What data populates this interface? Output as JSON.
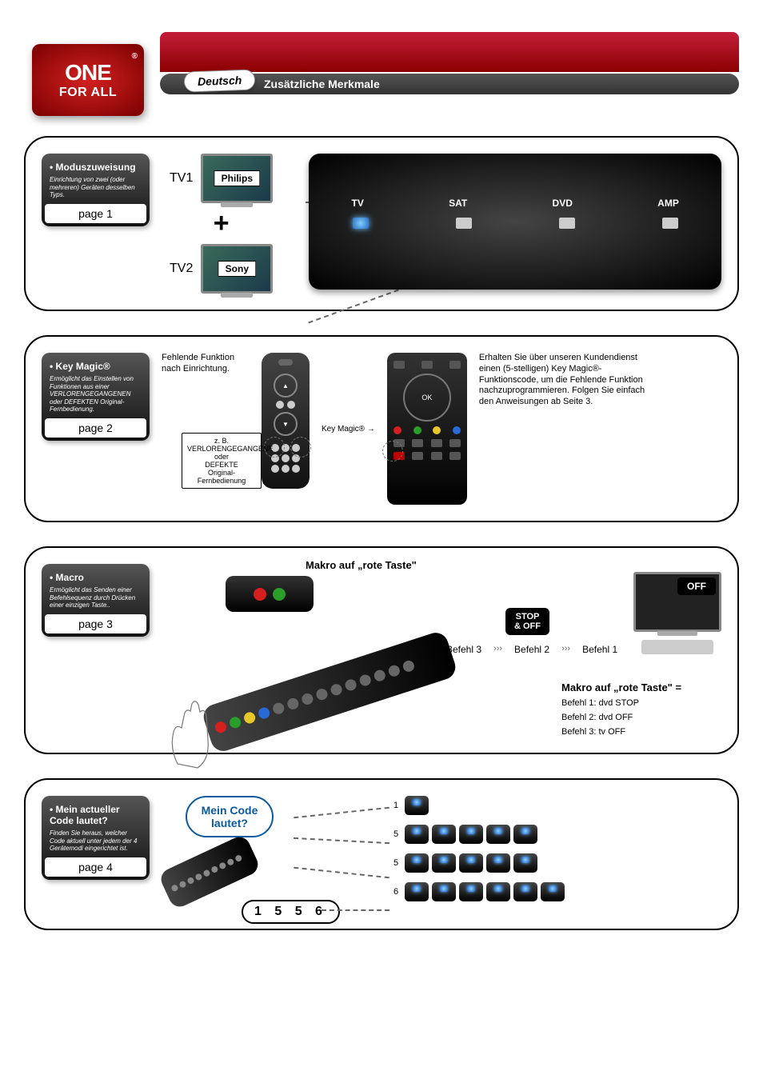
{
  "brand": {
    "line1": "ONE",
    "line2": "FOR ALL",
    "reg": "®"
  },
  "language_pill": "Deutsch",
  "page_subtitle": "Zusätzliche Merkmale",
  "panel1": {
    "badge_title": "• Moduszuweisung",
    "badge_desc": "Einrichtung von zwei (oder mehreren) Geräten desselben Typs.",
    "badge_page": "page 1",
    "tv1_label": "TV1",
    "tv1_brand": "Philips",
    "plus": "+",
    "tv2_label": "TV2",
    "tv2_brand": "Sony",
    "devices": [
      "TV",
      "SAT",
      "DVD",
      "AMP"
    ]
  },
  "panel2": {
    "badge_title": "• Key Magic®",
    "badge_desc": "Ermöglicht das Einstellen von Funktionen aus einer VERLORENGEGANGENEN oder DEFEKTEN Original-Fernbedienung.",
    "badge_page": "page 2",
    "left_text": "Fehlende Funktion nach Einrichtung.",
    "callout": "z. B.\nVERLORENGEGANGENE\noder\nDEFEKTE\nOriginal-Fernbedienung",
    "keymagic_label": "Key Magic®",
    "right_text": "Erhalten Sie über unseren Kundendienst einen (5-stelligen) Key Magic®-Funktionscode, um die Fehlende Funktion nachzuprogrammieren. Folgen Sie einfach den Anweisungen ab Seite 3.",
    "colors": {
      "red": "#d62020",
      "green": "#2a9d2a",
      "yellow": "#e6c82a",
      "blue": "#2a6ad6"
    }
  },
  "panel3": {
    "badge_title": "• Macro",
    "badge_desc": "Ermöglicht das Senden einer Befehlsequenz durch Drücken einer einzigen Taste..",
    "badge_page": "page 3",
    "heading": "Makro auf „rote Taste\"",
    "stop_off": "STOP\n& OFF",
    "cmd3": "Befehl 3",
    "cmd2": "Befehl 2",
    "cmd1": "Befehl 1",
    "off_label": "OFF",
    "summary_title": "Makro auf „rote Taste\" =",
    "summary_1": "Befehl 1: dvd STOP",
    "summary_2": "Befehl 2: dvd OFF",
    "summary_3": "Befehl 3: tv OFF"
  },
  "panel4": {
    "badge_title": "• Mein actueller Code lautet?",
    "badge_desc": "Finden Sie heraus, welcher Code aktuell unter jedem der 4 Gerätemodi eingerichtet ist.",
    "badge_page": "page 4",
    "bubble": "Mein Code lautet?",
    "code": "1 5 5 6",
    "rows": [
      {
        "count": "1",
        "blinks": 1
      },
      {
        "count": "5",
        "blinks": 5
      },
      {
        "count": "5",
        "blinks": 5
      },
      {
        "count": "6",
        "blinks": 6
      }
    ]
  }
}
